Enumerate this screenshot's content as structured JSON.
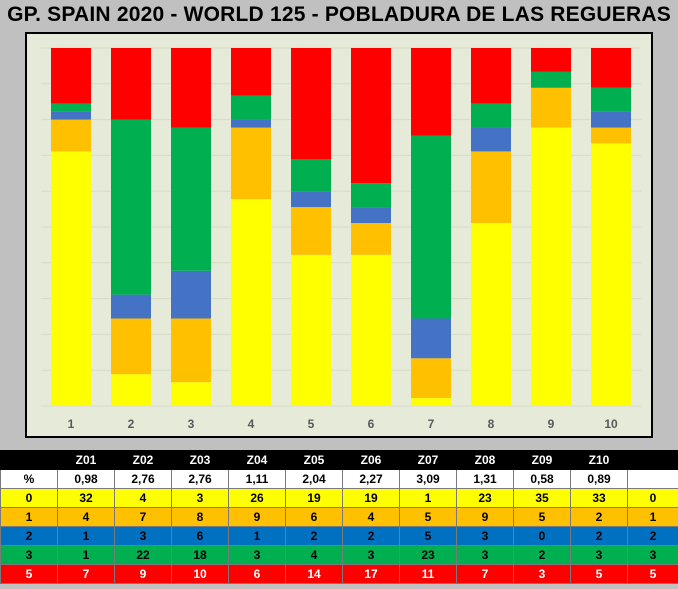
{
  "title": "GP. SPAIN 2020 - WORLD 125 - POBLADURA DE LAS REGUERAS",
  "chart_data": {
    "type": "bar",
    "stacked": true,
    "normalized_percent": true,
    "categories": [
      "1",
      "2",
      "3",
      "4",
      "5",
      "6",
      "7",
      "8",
      "9",
      "10"
    ],
    "series": [
      {
        "name": "0",
        "color": "#ffff00",
        "values": [
          32,
          4,
          3,
          26,
          19,
          19,
          1,
          23,
          35,
          33
        ]
      },
      {
        "name": "1",
        "color": "#ffc000",
        "values": [
          4,
          7,
          8,
          9,
          6,
          4,
          5,
          9,
          5,
          2
        ]
      },
      {
        "name": "2",
        "color": "#4472c4",
        "values": [
          1,
          3,
          6,
          1,
          2,
          2,
          5,
          3,
          0,
          2
        ]
      },
      {
        "name": "3",
        "color": "#00b050",
        "values": [
          1,
          22,
          18,
          3,
          4,
          3,
          23,
          3,
          2,
          3
        ]
      },
      {
        "name": "5",
        "color": "#ff0000",
        "values": [
          7,
          9,
          10,
          6,
          14,
          17,
          11,
          7,
          3,
          5
        ]
      }
    ],
    "ylim": [
      0,
      100
    ],
    "grid": true,
    "legend": "none"
  },
  "table": {
    "header": [
      "",
      "Z01",
      "Z02",
      "Z03",
      "Z04",
      "Z05",
      "Z06",
      "Z07",
      "Z08",
      "Z09",
      "Z10",
      ""
    ],
    "percent_row": [
      "%",
      "0,98",
      "2,76",
      "2,76",
      "1,11",
      "2,04",
      "2,27",
      "3,09",
      "1,31",
      "0,58",
      "0,89",
      ""
    ],
    "rows": [
      {
        "color": "#ffff00",
        "text_color": "#000000",
        "cells": [
          "0",
          "32",
          "4",
          "3",
          "26",
          "19",
          "19",
          "1",
          "23",
          "35",
          "33",
          "0"
        ]
      },
      {
        "color": "#ffc000",
        "text_color": "#000000",
        "cells": [
          "1",
          "4",
          "7",
          "8",
          "9",
          "6",
          "4",
          "5",
          "9",
          "5",
          "2",
          "1"
        ]
      },
      {
        "color": "#0070c0",
        "text_color": "#000000",
        "cells": [
          "2",
          "1",
          "3",
          "6",
          "1",
          "2",
          "2",
          "5",
          "3",
          "0",
          "2",
          "2"
        ]
      },
      {
        "color": "#00b050",
        "text_color": "#000000",
        "cells": [
          "3",
          "1",
          "22",
          "18",
          "3",
          "4",
          "3",
          "23",
          "3",
          "2",
          "3",
          "3"
        ]
      },
      {
        "color": "#ff0000",
        "text_color": "#ffffff",
        "cells": [
          "5",
          "7",
          "9",
          "10",
          "6",
          "14",
          "17",
          "11",
          "7",
          "3",
          "5",
          "5"
        ]
      }
    ]
  }
}
